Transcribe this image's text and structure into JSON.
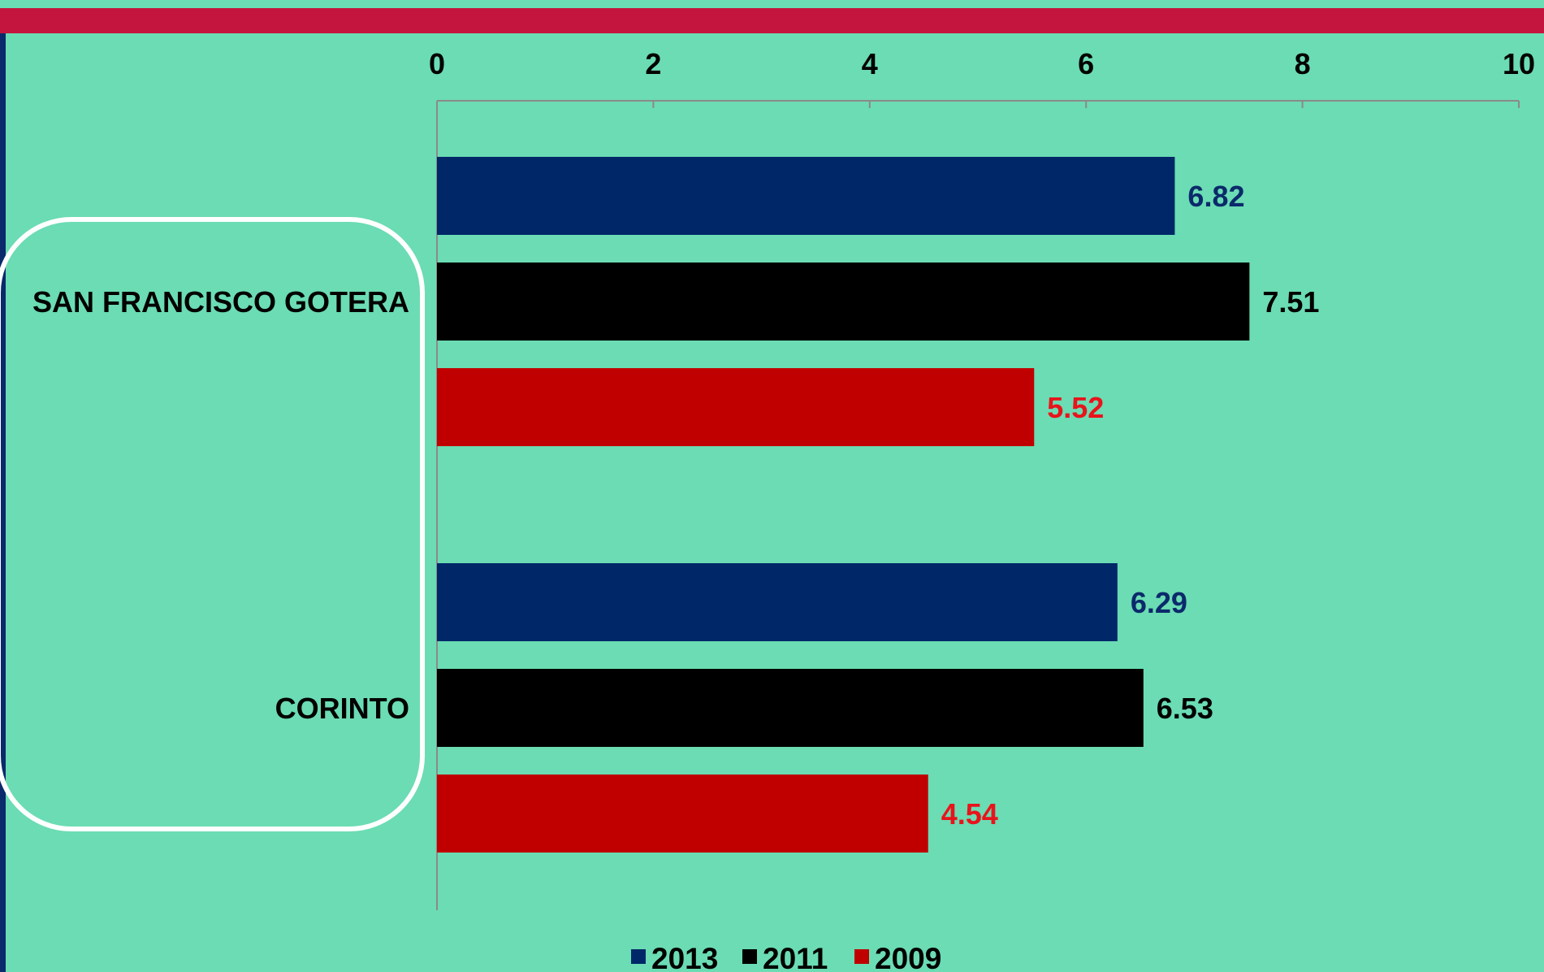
{
  "colors": {
    "background": "#6bdcb3",
    "header_bar": "#c4153e",
    "left_bar": "#0b2a6b",
    "highlight_outline": "#ffffff"
  },
  "chart_data": {
    "type": "bar",
    "orientation": "horizontal",
    "categories": [
      "SAN FRANCISCO GOTERA",
      "CORINTO"
    ],
    "series": [
      {
        "name": "2013",
        "values": [
          6.82,
          6.29
        ],
        "color": "#002868",
        "label_color": "#0b2a6b"
      },
      {
        "name": "2011",
        "values": [
          7.51,
          6.53
        ],
        "color": "#000000",
        "label_color": "#000000"
      },
      {
        "name": "2009",
        "values": [
          5.52,
          4.54
        ],
        "color": "#c00000",
        "label_color": "#e8141c"
      }
    ],
    "xlim": [
      0,
      10
    ],
    "x_ticks": [
      0,
      2,
      4,
      6,
      8,
      10
    ],
    "x_axis_position": "top",
    "grid": false,
    "legend_position": "bottom",
    "data_labels": true,
    "highlighted_category": "SAN FRANCISCO GOTERA"
  }
}
